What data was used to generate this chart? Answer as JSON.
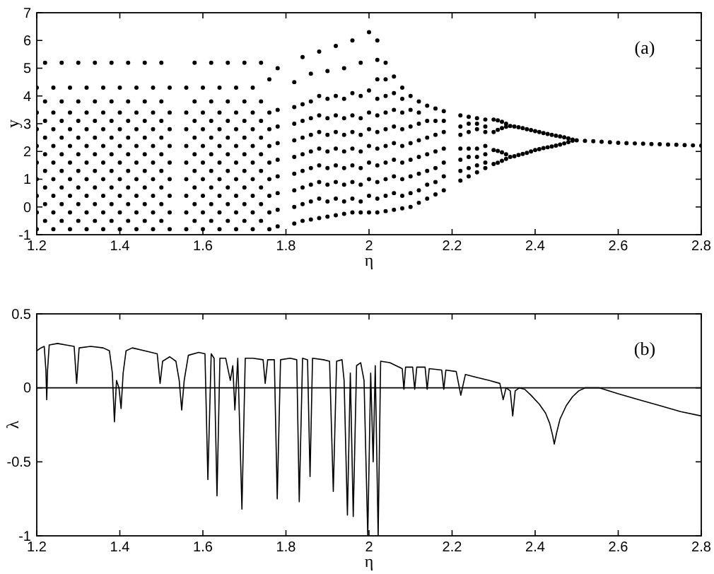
{
  "chart_data": [
    {
      "type": "scatter",
      "xlabel": "η",
      "ylabel": "y",
      "annotations": [
        "(a)"
      ],
      "xlim": [
        1.2,
        2.8
      ],
      "ylim": [
        -1,
        7
      ],
      "xticks": [
        1.2,
        1.4,
        1.6,
        1.8,
        2,
        2.2,
        2.4,
        2.6,
        2.8
      ],
      "yticks": [
        -1,
        0,
        1,
        2,
        3,
        4,
        5,
        6,
        7
      ],
      "marker": "circle",
      "series": [
        {
          "color": "#000000",
          "x": [
            1.2,
            1.2,
            1.2,
            1.2,
            1.2,
            1.2,
            1.2,
            1.2,
            1.2,
            1.22,
            1.22,
            1.22,
            1.22,
            1.22,
            1.22,
            1.22,
            1.22,
            1.22,
            1.24,
            1.24,
            1.24,
            1.24,
            1.24,
            1.24,
            1.24,
            1.24,
            1.24,
            1.26,
            1.26,
            1.26,
            1.26,
            1.26,
            1.26,
            1.26,
            1.26,
            1.26,
            1.28,
            1.28,
            1.28,
            1.28,
            1.28,
            1.28,
            1.28,
            1.28,
            1.28,
            1.3,
            1.3,
            1.3,
            1.3,
            1.3,
            1.3,
            1.3,
            1.3,
            1.3,
            1.32,
            1.32,
            1.32,
            1.32,
            1.32,
            1.32,
            1.32,
            1.32,
            1.32,
            1.34,
            1.34,
            1.34,
            1.34,
            1.34,
            1.34,
            1.34,
            1.34,
            1.34,
            1.36,
            1.36,
            1.36,
            1.36,
            1.36,
            1.36,
            1.36,
            1.36,
            1.36,
            1.38,
            1.38,
            1.38,
            1.38,
            1.38,
            1.38,
            1.38,
            1.38,
            1.38,
            1.4,
            1.4,
            1.4,
            1.4,
            1.4,
            1.4,
            1.4,
            1.4,
            1.4,
            1.42,
            1.42,
            1.42,
            1.42,
            1.42,
            1.42,
            1.42,
            1.42,
            1.42,
            1.44,
            1.44,
            1.44,
            1.44,
            1.44,
            1.44,
            1.44,
            1.44,
            1.44,
            1.46,
            1.46,
            1.46,
            1.46,
            1.46,
            1.46,
            1.46,
            1.46,
            1.46,
            1.48,
            1.48,
            1.48,
            1.48,
            1.48,
            1.48,
            1.48,
            1.48,
            1.48,
            1.5,
            1.5,
            1.5,
            1.5,
            1.5,
            1.5,
            1.5,
            1.5,
            1.5,
            1.52,
            1.52,
            1.52,
            1.52,
            1.52,
            1.52,
            1.52,
            1.52,
            1.52,
            1.56,
            1.56,
            1.56,
            1.56,
            1.56,
            1.56,
            1.56,
            1.56,
            1.56,
            1.58,
            1.58,
            1.58,
            1.58,
            1.58,
            1.58,
            1.58,
            1.58,
            1.58,
            1.6,
            1.6,
            1.6,
            1.6,
            1.6,
            1.6,
            1.6,
            1.6,
            1.6,
            1.62,
            1.62,
            1.62,
            1.62,
            1.62,
            1.62,
            1.62,
            1.62,
            1.62,
            1.64,
            1.64,
            1.64,
            1.64,
            1.64,
            1.64,
            1.64,
            1.64,
            1.64,
            1.66,
            1.66,
            1.66,
            1.66,
            1.66,
            1.66,
            1.66,
            1.66,
            1.66,
            1.68,
            1.68,
            1.68,
            1.68,
            1.68,
            1.68,
            1.68,
            1.68,
            1.68,
            1.7,
            1.7,
            1.7,
            1.7,
            1.7,
            1.7,
            1.7,
            1.7,
            1.7,
            1.72,
            1.72,
            1.72,
            1.72,
            1.72,
            1.72,
            1.72,
            1.72,
            1.72,
            1.74,
            1.74,
            1.74,
            1.74,
            1.74,
            1.74,
            1.74,
            1.74,
            1.74,
            1.76,
            1.76,
            1.76,
            1.76,
            1.76,
            1.76,
            1.76,
            1.76,
            1.76,
            1.78,
            1.78,
            1.78,
            1.78,
            1.78,
            1.78,
            1.78,
            1.78,
            1.78,
            1.82,
            1.82,
            1.82,
            1.82,
            1.82,
            1.82,
            1.82,
            1.82,
            1.82,
            1.84,
            1.84,
            1.84,
            1.84,
            1.84,
            1.84,
            1.84,
            1.84,
            1.84,
            1.86,
            1.86,
            1.86,
            1.86,
            1.86,
            1.86,
            1.86,
            1.86,
            1.86,
            1.88,
            1.88,
            1.88,
            1.88,
            1.88,
            1.88,
            1.88,
            1.88,
            1.88,
            1.9,
            1.9,
            1.9,
            1.9,
            1.9,
            1.9,
            1.9,
            1.9,
            1.9,
            1.92,
            1.92,
            1.92,
            1.92,
            1.92,
            1.92,
            1.92,
            1.92,
            1.92,
            1.94,
            1.94,
            1.94,
            1.94,
            1.94,
            1.94,
            1.94,
            1.94,
            1.94,
            1.96,
            1.96,
            1.96,
            1.96,
            1.96,
            1.96,
            1.96,
            1.96,
            1.96,
            1.98,
            1.98,
            1.98,
            1.98,
            1.98,
            1.98,
            1.98,
            1.98,
            1.98,
            2,
            2,
            2,
            2,
            2,
            2,
            2,
            2,
            2,
            2.02,
            2.02,
            2.02,
            2.02,
            2.02,
            2.02,
            2.02,
            2.02,
            2.02,
            2.02,
            2.02,
            2.04,
            2.04,
            2.04,
            2.04,
            2.04,
            2.04,
            2.04,
            2.04,
            2.04,
            2.04,
            2.06,
            2.06,
            2.06,
            2.06,
            2.06,
            2.06,
            2.06,
            2.06,
            2.06,
            2.08,
            2.08,
            2.08,
            2.08,
            2.08,
            2.08,
            2.08,
            2.08,
            2.08,
            2.1,
            2.1,
            2.1,
            2.1,
            2.1,
            2.1,
            2.1,
            2.1,
            2.12,
            2.12,
            2.12,
            2.12,
            2.12,
            2.12,
            2.12,
            2.12,
            2.14,
            2.14,
            2.14,
            2.14,
            2.14,
            2.14,
            2.14,
            2.16,
            2.16,
            2.16,
            2.16,
            2.16,
            2.16,
            2.16,
            2.18,
            2.18,
            2.18,
            2.18,
            2.18,
            2.18,
            2.18,
            2.22,
            2.22,
            2.22,
            2.22,
            2.22,
            2.22,
            2.22,
            2.24,
            2.24,
            2.24,
            2.24,
            2.24,
            2.24,
            2.24,
            2.26,
            2.26,
            2.26,
            2.26,
            2.26,
            2.26,
            2.26,
            2.28,
            2.28,
            2.28,
            2.28,
            2.28,
            2.28,
            2.28,
            2.3,
            2.3,
            2.3,
            2.3,
            2.31,
            2.31,
            2.31,
            2.31,
            2.32,
            2.32,
            2.32,
            2.32,
            2.33,
            2.33,
            2.33,
            2.33,
            2.34,
            2.34,
            2.35,
            2.35,
            2.36,
            2.36,
            2.37,
            2.37,
            2.38,
            2.38,
            2.39,
            2.39,
            2.4,
            2.4,
            2.41,
            2.41,
            2.42,
            2.42,
            2.43,
            2.43,
            2.44,
            2.44,
            2.45,
            2.45,
            2.46,
            2.46,
            2.47,
            2.47,
            2.48,
            2.48,
            2.49,
            2.49,
            2.5,
            2.52,
            2.54,
            2.56,
            2.58,
            2.6,
            2.62,
            2.64,
            2.66,
            2.68,
            2.7,
            2.72,
            2.74,
            2.76,
            2.78,
            2.8
          ],
          "values": [
            -0.8,
            -0.2,
            0.4,
            1,
            1.6,
            2.2,
            2.8,
            3.4,
            4.3,
            -0.5,
            0.1,
            0.7,
            1.3,
            1.9,
            2.5,
            3.1,
            3.8,
            5.2,
            -0.8,
            -0.2,
            0.4,
            1,
            1.6,
            2.2,
            2.8,
            3.4,
            4.3,
            -0.5,
            0.1,
            0.7,
            1.3,
            1.9,
            2.5,
            3.1,
            3.8,
            5.2,
            -0.8,
            -0.2,
            0.4,
            1,
            1.6,
            2.2,
            2.8,
            3.4,
            4.3,
            -0.5,
            0.1,
            0.7,
            1.3,
            1.9,
            2.5,
            3.1,
            3.8,
            5.2,
            -0.8,
            -0.2,
            0.4,
            1,
            1.6,
            2.2,
            2.8,
            3.4,
            4.3,
            -0.5,
            0.1,
            0.7,
            1.3,
            1.9,
            2.5,
            3.1,
            3.8,
            5.2,
            -0.8,
            -0.2,
            0.4,
            1,
            1.6,
            2.2,
            2.8,
            3.4,
            4.3,
            -0.5,
            0.1,
            0.7,
            1.3,
            1.9,
            2.5,
            3.1,
            3.8,
            5.2,
            -0.8,
            -0.2,
            0.4,
            1,
            1.6,
            2.2,
            2.8,
            3.4,
            4.3,
            -0.5,
            0.1,
            0.7,
            1.3,
            1.9,
            2.5,
            3.1,
            3.8,
            5.2,
            -0.8,
            -0.2,
            0.4,
            1,
            1.6,
            2.2,
            2.8,
            3.4,
            4.3,
            -0.5,
            0.1,
            0.7,
            1.3,
            1.9,
            2.5,
            3.1,
            3.8,
            5.2,
            -0.8,
            -0.2,
            0.4,
            1,
            1.6,
            2.2,
            2.8,
            3.4,
            4.3,
            -0.5,
            0.1,
            0.7,
            1.3,
            1.9,
            2.5,
            3.1,
            3.8,
            5.2,
            -0.8,
            -0.2,
            0.4,
            1,
            1.6,
            2.2,
            2.8,
            3.4,
            4.3,
            -0.8,
            -0.2,
            0.4,
            1,
            1.6,
            2.2,
            2.8,
            3.4,
            4.3,
            -0.5,
            0.1,
            0.7,
            1.3,
            1.9,
            2.5,
            3.1,
            3.8,
            5.2,
            -0.8,
            -0.2,
            0.4,
            1,
            1.6,
            2.2,
            2.8,
            3.4,
            4.3,
            -0.5,
            0.1,
            0.7,
            1.3,
            1.9,
            2.5,
            3.1,
            3.8,
            5.2,
            -0.8,
            -0.2,
            0.4,
            1,
            1.6,
            2.2,
            2.8,
            3.4,
            4.3,
            -0.5,
            0.1,
            0.7,
            1.3,
            1.9,
            2.5,
            3.1,
            3.8,
            5.2,
            -0.8,
            -0.2,
            0.4,
            1,
            1.6,
            2.2,
            2.8,
            3.4,
            4.3,
            -0.5,
            0.1,
            0.7,
            1.3,
            1.9,
            2.5,
            3.1,
            3.8,
            5.2,
            -0.8,
            -0.2,
            0.4,
            1,
            1.6,
            2.2,
            2.8,
            3.4,
            4.3,
            -0.5,
            0.1,
            0.7,
            1.3,
            1.9,
            2.5,
            3.1,
            3.8,
            5.2,
            -0.8,
            -0.2,
            0.4,
            1,
            1.6,
            2.2,
            2.8,
            3.4,
            4.6,
            -0.7,
            -0.1,
            0.5,
            1.1,
            1.7,
            2.3,
            2.9,
            3.5,
            5,
            -0.6,
            0,
            0.6,
            1.2,
            1.8,
            2.4,
            3,
            3.6,
            4.5,
            -0.5,
            0.1,
            0.7,
            1.3,
            1.9,
            2.5,
            3.1,
            3.7,
            5.4,
            -0.45,
            0.2,
            0.8,
            1.4,
            2,
            2.6,
            3.2,
            3.8,
            4.8,
            -0.4,
            0.3,
            0.9,
            1.5,
            2.1,
            2.7,
            3.3,
            4,
            5.6,
            -0.35,
            0.2,
            0.8,
            1.4,
            2,
            2.6,
            3.2,
            3.9,
            4.9,
            -0.3,
            0.3,
            0.9,
            1.5,
            2.1,
            2.7,
            3.3,
            4,
            5.8,
            -0.25,
            0.2,
            0.8,
            1.4,
            2,
            2.6,
            3.2,
            3.9,
            5,
            -0.2,
            0.3,
            0.9,
            1.5,
            2.1,
            2.7,
            3.3,
            4.1,
            6,
            -0.2,
            0.2,
            0.8,
            1.4,
            2,
            2.6,
            3.2,
            4,
            5.2,
            -0.2,
            0.4,
            1,
            1.6,
            2.2,
            2.8,
            3.4,
            4.2,
            6.3,
            -0.2,
            0.3,
            0.9,
            1.5,
            2.1,
            2.7,
            3.3,
            3.9,
            4.6,
            5.3,
            6,
            -0.15,
            0.4,
            1,
            1.6,
            2.2,
            2.8,
            3.4,
            4,
            4.6,
            5.2,
            -0.1,
            0.5,
            1.1,
            1.7,
            2.3,
            2.9,
            3.5,
            4.1,
            4.7,
            -0.05,
            0.4,
            1,
            1.6,
            2.2,
            2.8,
            3.4,
            3.9,
            4.3,
            0,
            0.5,
            1.1,
            1.7,
            2.3,
            2.9,
            3.5,
            4,
            0.15,
            0.6,
            1.2,
            1.8,
            2.4,
            3,
            3.4,
            3.8,
            0.3,
            0.8,
            1.3,
            1.9,
            2.5,
            3.1,
            3.65,
            0.45,
            0.9,
            1.4,
            2,
            2.6,
            3.1,
            3.55,
            0.6,
            1.1,
            1.6,
            2.1,
            2.7,
            3.1,
            3.45,
            0.95,
            1.3,
            1.7,
            2.1,
            2.6,
            2.9,
            3.3,
            1.1,
            1.4,
            1.8,
            2.1,
            2.7,
            3,
            3.25,
            1.25,
            1.5,
            1.8,
            2.1,
            2.8,
            3,
            3.2,
            1.4,
            1.6,
            1.9,
            2.2,
            2.7,
            2.9,
            3.15,
            3.15,
            2.7,
            2.05,
            1.55,
            3.12,
            2.78,
            2.02,
            1.59,
            3.07,
            2.84,
            1.97,
            1.66,
            3,
            2.89,
            1.9,
            1.73,
            2.92,
            1.8,
            2.9,
            1.83,
            2.87,
            1.87,
            2.84,
            1.91,
            2.8,
            1.95,
            2.77,
            2,
            2.73,
            2.05,
            2.7,
            2.08,
            2.66,
            2.12,
            2.63,
            2.15,
            2.6,
            2.18,
            2.57,
            2.21,
            2.54,
            2.25,
            2.51,
            2.29,
            2.47,
            2.34,
            2.43,
            2.39,
            2.4,
            2.38,
            2.37,
            2.35,
            2.33,
            2.31,
            2.3,
            2.29,
            2.28,
            2.27,
            2.26,
            2.25,
            2.24,
            2.23,
            2.22,
            2.21
          ]
        }
      ]
    },
    {
      "type": "line",
      "xlabel": "η",
      "ylabel": "λ",
      "annotations": [
        "(b)"
      ],
      "xlim": [
        1.2,
        2.8
      ],
      "ylim": [
        -1,
        0.5
      ],
      "xticks": [
        1.2,
        1.4,
        1.6,
        1.8,
        2,
        2.2,
        2.4,
        2.6,
        2.8
      ],
      "yticks": [
        -1,
        -0.5,
        0,
        0.5
      ],
      "ref_lines": [
        {
          "axis": "y",
          "value": 0,
          "color": "#000000"
        }
      ],
      "series": [
        {
          "color": "#000000",
          "x": [
            1.2,
            1.21,
            1.218,
            1.222,
            1.224,
            1.226,
            1.23,
            1.25,
            1.27,
            1.29,
            1.296,
            1.302,
            1.33,
            1.36,
            1.375,
            1.382,
            1.387,
            1.392,
            1.398,
            1.403,
            1.408,
            1.415,
            1.43,
            1.46,
            1.49,
            1.497,
            1.503,
            1.52,
            1.535,
            1.543,
            1.549,
            1.555,
            1.565,
            1.59,
            1.605,
            1.612,
            1.62,
            1.627,
            1.634,
            1.641,
            1.655,
            1.666,
            1.672,
            1.677,
            1.684,
            1.694,
            1.702,
            1.72,
            1.745,
            1.75,
            1.756,
            1.772,
            1.779,
            1.787,
            1.81,
            1.826,
            1.832,
            1.84,
            1.852,
            1.858,
            1.864,
            1.89,
            1.905,
            1.914,
            1.922,
            1.935,
            1.94,
            1.948,
            1.955,
            1.962,
            1.97,
            1.98,
            1.988,
            1.997,
            2.004,
            2.01,
            2.015,
            2.022,
            2.028,
            2.05,
            2.08,
            2.084,
            2.088,
            2.105,
            2.11,
            2.115,
            2.135,
            2.14,
            2.145,
            2.175,
            2.18,
            2.185,
            2.21,
            2.221,
            2.232,
            2.26,
            2.29,
            2.315,
            2.323,
            2.33,
            2.34,
            2.346,
            2.352,
            2.362,
            2.375,
            2.39,
            2.41,
            2.425,
            2.435,
            2.442,
            2.446,
            2.452,
            2.46,
            2.475,
            2.49,
            2.505,
            2.52,
            2.54,
            2.555,
            2.6,
            2.65,
            2.7,
            2.75,
            2.8
          ],
          "values": [
            0.25,
            0.27,
            0.28,
            0.12,
            -0.08,
            0.12,
            0.29,
            0.3,
            0.29,
            0.28,
            0.03,
            0.27,
            0.28,
            0.27,
            0.25,
            0.1,
            -0.23,
            0.05,
            0,
            -0.14,
            0.1,
            0.25,
            0.27,
            0.25,
            0.23,
            0.03,
            0.18,
            0.21,
            0.18,
            0.05,
            -0.15,
            0.05,
            0.22,
            0.24,
            0.23,
            -0.62,
            0.23,
            0.2,
            -0.73,
            0.2,
            0.2,
            0.05,
            0.15,
            -0.15,
            0.2,
            -0.82,
            0.2,
            0.2,
            0.19,
            0.03,
            0.19,
            0.19,
            -0.75,
            0.19,
            0.2,
            0.19,
            -0.77,
            0.2,
            0.19,
            -0.6,
            0.2,
            0.19,
            0.18,
            -0.7,
            0.18,
            0.19,
            0.05,
            -0.86,
            0.1,
            -0.87,
            0.15,
            0.17,
            0.05,
            -1,
            0.1,
            -0.5,
            0.15,
            -1,
            0.18,
            0.17,
            0.13,
            -0.01,
            0.14,
            0.14,
            -0.01,
            0.14,
            0.14,
            -0.01,
            0.13,
            0.12,
            -0.01,
            0.12,
            0.11,
            -0.05,
            0.09,
            0.07,
            0.05,
            0.03,
            -0.08,
            0,
            -0.02,
            -0.19,
            -0.02,
            0,
            -0.01,
            -0.05,
            -0.11,
            -0.17,
            -0.24,
            -0.32,
            -0.38,
            -0.3,
            -0.21,
            -0.12,
            -0.06,
            -0.02,
            0,
            0,
            0,
            -0.04,
            -0.08,
            -0.12,
            -0.16,
            -0.19
          ]
        }
      ]
    }
  ]
}
